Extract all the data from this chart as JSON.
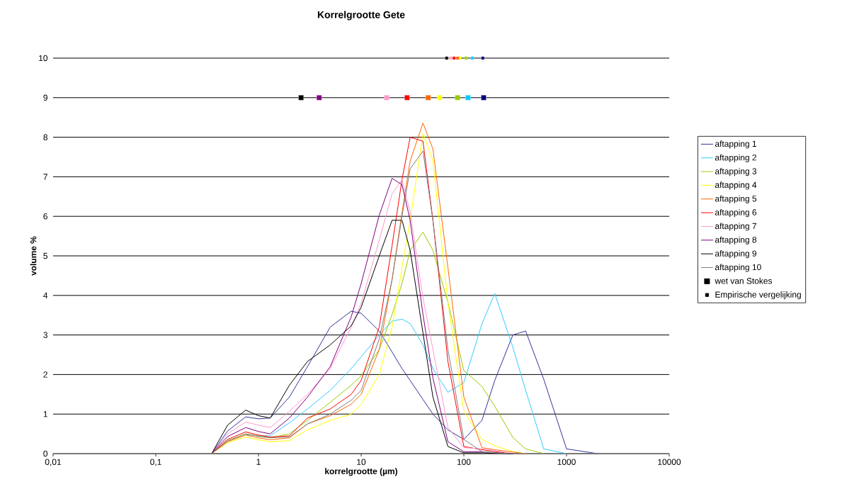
{
  "chart_data": {
    "type": "line",
    "title": "Korrelgrootte Gete",
    "xlabel": "korrelgrootte  (µm)",
    "ylabel": "volume %",
    "log": "x",
    "grid": "y",
    "legend": "right",
    "xlim": [
      0.01,
      10000
    ],
    "ylim": [
      0,
      10
    ],
    "xticks": [
      {
        "value": 0.01,
        "label": "0,01"
      },
      {
        "value": 0.1,
        "label": "0,1"
      },
      1,
      10,
      100,
      1000,
      10000
    ],
    "yticks": [
      0,
      1,
      2,
      3,
      4,
      5,
      6,
      7,
      8,
      9,
      10
    ],
    "x": [
      0.01,
      0.3,
      0.35,
      0.5,
      0.75,
      1,
      1.3,
      2,
      3,
      5,
      8,
      10,
      15,
      20,
      25,
      30,
      40,
      50,
      70,
      100,
      150,
      200,
      300,
      400,
      600,
      1000,
      2000,
      10000
    ],
    "series": [
      {
        "name": "aftapping 1",
        "color": "#333399",
        "values": [
          null,
          null,
          0,
          0.57,
          0.93,
          0.88,
          0.9,
          1.43,
          2.2,
          3.2,
          3.6,
          3.55,
          3.1,
          2.57,
          2.15,
          1.85,
          1.37,
          1.0,
          0.6,
          0.36,
          0.84,
          1.85,
          3.0,
          3.1,
          1.88,
          0.12,
          0,
          null
        ]
      },
      {
        "name": "aftapping 2",
        "color": "#33ccff",
        "values": [
          null,
          null,
          null,
          null,
          0.48,
          0.45,
          0.45,
          0.78,
          1.13,
          1.6,
          2.15,
          2.45,
          3.0,
          3.35,
          3.4,
          3.29,
          2.75,
          2.15,
          1.55,
          1.8,
          3.28,
          4.05,
          2.69,
          1.6,
          0.12,
          0,
          null,
          null
        ]
      },
      {
        "name": "aftapping 3",
        "color": "#99cc00",
        "values": [
          null,
          null,
          0,
          0.33,
          0.5,
          0.44,
          0.4,
          0.5,
          0.84,
          1.3,
          1.73,
          1.97,
          2.63,
          3.52,
          4.3,
          5.14,
          5.6,
          5.14,
          3.82,
          2.1,
          1.7,
          1.2,
          0.41,
          0.12,
          0,
          null,
          null,
          null
        ]
      },
      {
        "name": "aftapping 4",
        "color": "#ffff00",
        "values": [
          null,
          null,
          0,
          0.28,
          0.42,
          0.35,
          0.3,
          0.33,
          0.6,
          0.84,
          1.0,
          1.25,
          2.0,
          3.2,
          4.7,
          5.9,
          8.1,
          7.4,
          3.82,
          1.07,
          0.36,
          0.2,
          0.05,
          0,
          null,
          null,
          null,
          null
        ]
      },
      {
        "name": "aftapping 5",
        "color": "#ff6600",
        "values": [
          null,
          null,
          0,
          0.3,
          0.47,
          0.4,
          0.35,
          0.4,
          0.75,
          0.96,
          1.25,
          1.5,
          2.63,
          4.4,
          6.1,
          7.4,
          8.36,
          7.7,
          4.7,
          1.43,
          0.15,
          0.1,
          0.04,
          0,
          null,
          null,
          null,
          null
        ]
      },
      {
        "name": "aftapping 6",
        "color": "#ff0000",
        "values": [
          null,
          null,
          0,
          0.36,
          0.55,
          0.47,
          0.42,
          0.45,
          0.9,
          1.13,
          1.5,
          1.85,
          3.2,
          5.26,
          6.93,
          8.0,
          7.9,
          5.9,
          2.33,
          0.18,
          0.1,
          0.05,
          0,
          null,
          null,
          null,
          null,
          null
        ]
      },
      {
        "name": "aftapping 7",
        "color": "#ff99cc",
        "values": [
          null,
          null,
          0,
          0.5,
          0.8,
          0.72,
          0.66,
          1.07,
          1.5,
          2.15,
          3.2,
          3.8,
          5.4,
          6.57,
          6.93,
          6.1,
          3.94,
          2.63,
          0.66,
          0.15,
          0.12,
          0.08,
          0,
          null,
          null,
          null,
          null,
          null
        ]
      },
      {
        "name": "aftapping 8",
        "color": "#800080",
        "values": [
          null,
          null,
          0,
          0.43,
          0.66,
          0.56,
          0.5,
          0.9,
          1.43,
          2.2,
          3.46,
          4.3,
          6.03,
          6.96,
          6.8,
          5.9,
          3.52,
          1.91,
          0.3,
          0.05,
          0.05,
          0.02,
          0,
          null,
          null,
          null,
          null,
          null
        ]
      },
      {
        "name": "aftapping 9",
        "color": "#000000",
        "values": [
          null,
          null,
          0,
          0.72,
          1.1,
          0.96,
          0.9,
          1.73,
          2.33,
          2.75,
          3.23,
          3.7,
          5.0,
          5.9,
          5.9,
          5.14,
          3.05,
          1.43,
          0.18,
          0.02,
          0.02,
          0.01,
          0,
          null,
          null,
          null,
          null,
          null
        ]
      },
      {
        "name": "aftapping 10",
        "color": "#808080",
        "values": [
          0,
          0,
          0,
          0.32,
          0.5,
          0.44,
          0.4,
          0.42,
          0.75,
          1.0,
          1.35,
          1.6,
          2.9,
          4.4,
          6.0,
          7.2,
          7.65,
          5.9,
          2.63,
          0.36,
          0.05,
          0.02,
          0,
          0,
          0,
          0,
          0,
          0
        ]
      },
      {
        "name": "wet van Stokes",
        "type": "scatter",
        "marker": "square",
        "color": "#000000",
        "x": [
          156,
          110,
          87,
          58,
          45,
          28,
          17.7,
          3.9,
          2.6
        ],
        "values": [
          9,
          9,
          9,
          9,
          9,
          9,
          9,
          9,
          9
        ],
        "colors": [
          "#000080",
          "#00ccff",
          "#99cc00",
          "#ffff00",
          "#ff6600",
          "#ff0000",
          "#ff99cc",
          "#800080",
          "#000000"
        ]
      },
      {
        "name": "Empirische vergelijking",
        "type": "scatter",
        "marker": "square",
        "color": "#000000",
        "x": [
          153,
          121,
          105,
          91,
          87,
          80,
          75,
          68
        ],
        "values": [
          10,
          10,
          10,
          10,
          10,
          10,
          10,
          10
        ],
        "colors": [
          "#000080",
          "#00ccff",
          "#99cc00",
          "#ffff00",
          "#ff6600",
          "#ff0000",
          "#ff99cc",
          "#000000"
        ]
      }
    ]
  }
}
